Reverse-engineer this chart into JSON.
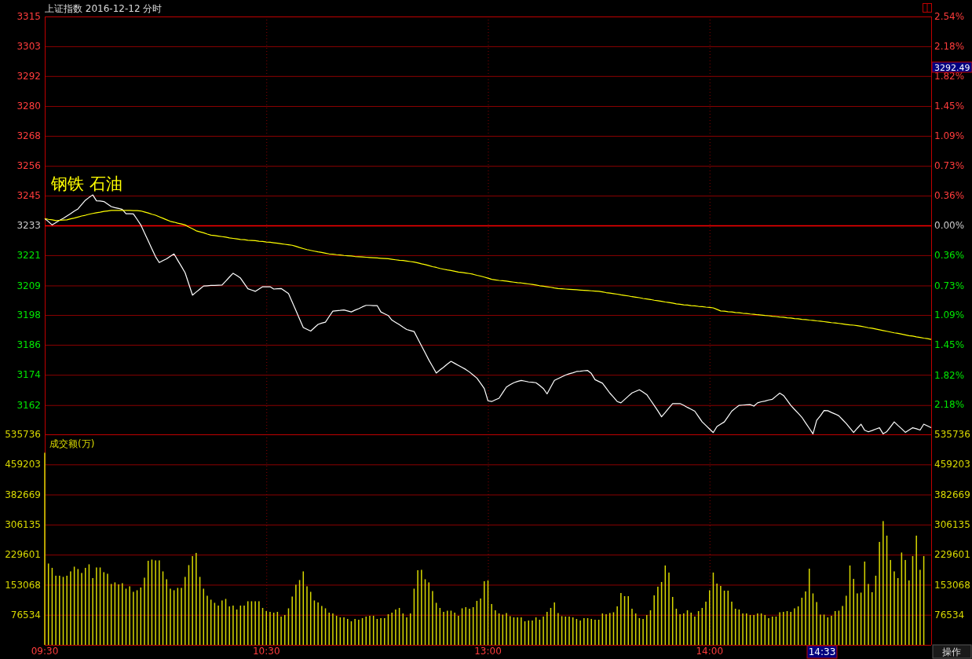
{
  "chart_data": [
    {
      "type": "line",
      "title": "上证指数  2016-12-12 分时",
      "categories": [
        null,
        null,
        null,
        null,
        null,
        null,
        null,
        null,
        null,
        null,
        null,
        null,
        null,
        null,
        null,
        null,
        null,
        null,
        null,
        null,
        null,
        null,
        null,
        null,
        null,
        null,
        null,
        null,
        null,
        null,
        null,
        null,
        null,
        null,
        null,
        null,
        null,
        null,
        null,
        null,
        null,
        null,
        null,
        null,
        null,
        null,
        null,
        null,
        null,
        null,
        null,
        null,
        null,
        null,
        null,
        null,
        null,
        null,
        null,
        null,
        null,
        null,
        null,
        null,
        null,
        null,
        null,
        null,
        null,
        null,
        null,
        null,
        null,
        null,
        null,
        null,
        null,
        null,
        null,
        null,
        null,
        null,
        null,
        null,
        null,
        null,
        null,
        null,
        null,
        null,
        null,
        null,
        null,
        null,
        null,
        null,
        null,
        null,
        null,
        null,
        null,
        null,
        null,
        null,
        null,
        null,
        null,
        null,
        null,
        null,
        null,
        null,
        null,
        null,
        null,
        null,
        null,
        null,
        null,
        null,
        null,
        null,
        null,
        null,
        null,
        null,
        null,
        null,
        null,
        null,
        null,
        null,
        null,
        null,
        null,
        null,
        null,
        null,
        null,
        null,
        null,
        null,
        null,
        null,
        null,
        null,
        null,
        null,
        null,
        null,
        null,
        null,
        null,
        null,
        null,
        null,
        null,
        null,
        null,
        null,
        null,
        null,
        null,
        null,
        null,
        null,
        null,
        null,
        null,
        null,
        null,
        null,
        null,
        null,
        null,
        null,
        null,
        null,
        null,
        null,
        null,
        null,
        null,
        null,
        null,
        null,
        null,
        null,
        null,
        null,
        null,
        null,
        null,
        null,
        null,
        null,
        null,
        null,
        null,
        null,
        null,
        null,
        null,
        null,
        null,
        null,
        null,
        null,
        null,
        null,
        null,
        null,
        null,
        null,
        null,
        null,
        null,
        null,
        null,
        null,
        null,
        null,
        null,
        null,
        null,
        null,
        null,
        null,
        null,
        null,
        null,
        null,
        null,
        null,
        null,
        null,
        null,
        null,
        null,
        null,
        null
      ],
      "ylim": [
        3150.9,
        3315.1
      ],
      "yticks": [
        {
          "value": 3315.1,
          "label": "3315"
        },
        {
          "value": 3303.4,
          "label": "3303"
        },
        {
          "value": 3291.7,
          "label": "3292"
        },
        {
          "value": 3279.9,
          "label": "3280"
        },
        {
          "value": 3268.2,
          "label": "3268"
        },
        {
          "value": 3256.4,
          "label": "3256"
        },
        {
          "value": 3244.7,
          "label": "3245"
        },
        {
          "value": 3233.0,
          "label": "3233"
        },
        {
          "value": 3221.3,
          "label": "3221"
        },
        {
          "value": 3209.4,
          "label": "3209"
        },
        {
          "value": 3197.8,
          "label": "3198"
        },
        {
          "value": 3186.1,
          "label": "3186"
        },
        {
          "value": 3174.3,
          "label": "3174"
        },
        {
          "value": 3162.4,
          "label": "3162"
        }
      ],
      "y2lim": [
        -2.54,
        2.54
      ],
      "y2ticks": [
        {
          "value": 2.54,
          "label": "2.54%"
        },
        {
          "value": 2.18,
          "label": "2.18%"
        },
        {
          "value": 1.82,
          "label": "1.82%"
        },
        {
          "value": 1.45,
          "label": "1.45%"
        },
        {
          "value": 1.09,
          "label": "1.09%"
        },
        {
          "value": 0.73,
          "label": "0.73%"
        },
        {
          "value": 0.36,
          "label": "0.36%"
        },
        {
          "value": 0,
          "label": "0.00%"
        },
        {
          "value": -0.36,
          "label": "0.36%"
        },
        {
          "value": -0.73,
          "label": "0.73%"
        },
        {
          "value": -1.09,
          "label": "1.09%"
        },
        {
          "value": -1.45,
          "label": "1.45%"
        },
        {
          "value": -1.82,
          "label": "1.82%"
        },
        {
          "value": -2.18,
          "label": "2.18%"
        }
      ],
      "grid": true,
      "tick_labels": "y",
      "ref_lines": [
        {
          "axis": "y",
          "value": 3233.0,
          "color": "#ff0000"
        }
      ],
      "annotations": [
        "钢铁 石油",
        "3292.49"
      ],
      "series": [
        {
          "color": "#ffffff",
          "values": [
            3235.7,
            3234.5,
            3233.2,
            3234.1,
            3235.0,
            3235.8,
            3236.7,
            3237.6,
            3238.6,
            3239.5,
            3241.2,
            3242.9,
            3244.0,
            3245.0,
            3242.7,
            3242.6,
            3242.4,
            3241.4,
            3240.4,
            3240.0,
            3239.7,
            3239.3,
            3237.6,
            3237.6,
            3237.5,
            3235.4,
            3233.2,
            3230.1,
            3227.0,
            3223.8,
            3220.7,
            3218.4,
            3219.2,
            3219.9,
            3220.9,
            3221.8,
            3219.3,
            3216.9,
            3214.4,
            3210.0,
            3205.6,
            3206.8,
            3208.0,
            3209.2,
            3209.3,
            3209.4,
            3209.4,
            3209.5,
            3209.6,
            3211.1,
            3212.7,
            3214.2,
            3213.3,
            3212.3,
            3210.2,
            3208.1,
            3207.6,
            3207.1,
            3208.0,
            3208.9,
            3208.9,
            3208.9,
            3208.0,
            3208.1,
            3208.2,
            3207.2,
            3206.2,
            3202.9,
            3199.6,
            3196.2,
            3192.9,
            3192.2,
            3191.5,
            3192.8,
            3194.1,
            3194.6,
            3195.0,
            3197.2,
            3199.3,
            3199.5,
            3199.6,
            3199.8,
            3199.4,
            3199.0,
            3199.7,
            3200.3,
            3201.0,
            3201.6,
            3201.6,
            3201.5,
            3201.5,
            3199.0,
            3198.3,
            3197.6,
            3195.8,
            3194.9,
            3194.0,
            3193.0,
            3192.1,
            3191.7,
            3191.3,
            3188.5,
            3185.7,
            3182.9,
            3180.1,
            3177.6,
            3175.0,
            3176.2,
            3177.3,
            3178.5,
            3179.6,
            3178.8,
            3178.0,
            3177.2,
            3176.4,
            3175.4,
            3174.2,
            3173.0,
            3171.0,
            3168.9,
            3164.1,
            3163.8,
            3164.5,
            3165.1,
            3167.3,
            3169.5,
            3170.4,
            3171.2,
            3171.7,
            3172.1,
            3171.8,
            3171.5,
            3171.4,
            3171.2,
            3170.1,
            3168.9,
            3166.8,
            3169.5,
            3172.1,
            3172.8,
            3173.5,
            3174.2,
            3174.7,
            3175.1,
            3175.6,
            3175.7,
            3175.9,
            3176.0,
            3174.8,
            3172.4,
            3171.7,
            3171.0,
            3169.1,
            3167.1,
            3165.5,
            3163.8,
            3163.3,
            3164.6,
            3165.9,
            3167.2,
            3167.8,
            3168.4,
            3167.5,
            3166.5,
            3164.4,
            3162.3,
            3160.1,
            3157.8,
            3159.5,
            3161.3,
            3163.0,
            3163.0,
            3163.0,
            3162.3,
            3161.5,
            3160.8,
            3160.0,
            3157.9,
            3155.8,
            3154.4,
            3153.0,
            3151.6,
            3154.0,
            3154.9,
            3155.8,
            3157.9,
            3160.0,
            3161.2,
            3162.3,
            3162.4,
            3162.5,
            3162.6,
            3162.0,
            3163.3,
            3163.7,
            3164.0,
            3164.4,
            3164.7,
            3165.9,
            3167.1,
            3166.2,
            3164.3,
            3162.3,
            3160.7,
            3159.2,
            3157.6,
            3155.4,
            3153.3,
            3151.1,
            3156.4,
            3158.2,
            3160.3,
            3160.2,
            3159.5,
            3158.9,
            3158.2,
            3156.7,
            3155.2,
            3153.4,
            3151.6,
            3153.3,
            3154.9,
            3152.5,
            3151.9,
            3152.4,
            3153.0,
            3153.5,
            3151.1,
            3152.0,
            3153.9,
            3155.8,
            3154.4,
            3153.1,
            3151.7,
            3152.6,
            3153.5,
            3153.1,
            3152.6,
            3154.9,
            3154.2,
            3153.5
          ]
        },
        {
          "color": "#ffff00",
          "values": [
            3235.7,
            3235.4,
            3235.2,
            3234.9,
            3235.0,
            3235.1,
            3235.2,
            3235.6,
            3235.9,
            3236.3,
            3236.7,
            3237.0,
            3237.4,
            3237.7,
            3238.0,
            3238.2,
            3238.5,
            3238.7,
            3238.9,
            3238.9,
            3238.9,
            3238.9,
            3238.9,
            3238.9,
            3238.8,
            3238.8,
            3238.7,
            3238.3,
            3237.9,
            3237.4,
            3237.0,
            3236.4,
            3235.8,
            3235.2,
            3234.6,
            3234.3,
            3233.9,
            3233.6,
            3233.2,
            3232.4,
            3231.7,
            3230.9,
            3230.5,
            3230.1,
            3229.6,
            3229.2,
            3229.0,
            3228.8,
            3228.6,
            3228.4,
            3228.1,
            3227.9,
            3227.7,
            3227.5,
            3227.4,
            3227.2,
            3227.1,
            3227.0,
            3226.8,
            3226.7,
            3226.5,
            3226.4,
            3226.2,
            3226.0,
            3225.8,
            3225.6,
            3225.4,
            3225.2,
            3224.8,
            3224.3,
            3223.9,
            3223.5,
            3223.2,
            3222.9,
            3222.6,
            3222.4,
            3222.1,
            3221.8,
            3221.7,
            3221.5,
            3221.4,
            3221.2,
            3221.1,
            3221.0,
            3220.8,
            3220.7,
            3220.6,
            3220.5,
            3220.4,
            3220.3,
            3220.2,
            3220.1,
            3220.0,
            3219.9,
            3219.7,
            3219.5,
            3219.3,
            3219.2,
            3219.0,
            3218.8,
            3218.6,
            3218.3,
            3217.9,
            3217.6,
            3217.2,
            3216.8,
            3216.5,
            3216.1,
            3215.8,
            3215.5,
            3215.3,
            3215.0,
            3214.7,
            3214.5,
            3214.3,
            3214.1,
            3213.8,
            3213.4,
            3213.1,
            3212.7,
            3212.3,
            3211.8,
            3211.6,
            3211.4,
            3211.3,
            3211.1,
            3210.9,
            3210.7,
            3210.5,
            3210.4,
            3210.2,
            3210.0,
            3209.8,
            3209.6,
            3209.3,
            3209.1,
            3208.9,
            3208.7,
            3208.4,
            3208.2,
            3208.1,
            3208.0,
            3207.9,
            3207.8,
            3207.7,
            3207.6,
            3207.5,
            3207.4,
            3207.3,
            3207.2,
            3207.1,
            3206.9,
            3206.6,
            3206.4,
            3206.2,
            3206.0,
            3205.7,
            3205.5,
            3205.3,
            3205.0,
            3204.8,
            3204.6,
            3204.3,
            3204.1,
            3203.9,
            3203.6,
            3203.4,
            3203.2,
            3202.9,
            3202.7,
            3202.5,
            3202.2,
            3202.0,
            3201.8,
            3201.7,
            3201.5,
            3201.4,
            3201.2,
            3201.1,
            3200.9,
            3200.8,
            3200.6,
            3200.0,
            3199.4,
            3199.3,
            3199.1,
            3199.0,
            3198.8,
            3198.7,
            3198.5,
            3198.4,
            3198.2,
            3198.1,
            3197.9,
            3197.8,
            3197.6,
            3197.5,
            3197.3,
            3197.2,
            3197.0,
            3196.9,
            3196.7,
            3196.6,
            3196.4,
            3196.3,
            3196.1,
            3196.0,
            3195.8,
            3195.7,
            3195.5,
            3195.4,
            3195.2,
            3195.0,
            3194.8,
            3194.7,
            3194.5,
            3194.3,
            3194.1,
            3193.9,
            3193.8,
            3193.6,
            3193.4,
            3193.1,
            3192.8,
            3192.6,
            3192.3,
            3192.0,
            3191.7,
            3191.4,
            3191.1,
            3190.8,
            3190.6,
            3190.3,
            3190.0,
            3189.7,
            3189.5,
            3189.2,
            3189.0,
            3188.7,
            3188.5,
            3188.2
          ]
        }
      ]
    },
    {
      "type": "bar",
      "title": "成交额(万)",
      "color": "#d8d800",
      "categories": [
        "09:30",
        null,
        null,
        null,
        null,
        null,
        null,
        null,
        null,
        null,
        null,
        null,
        null,
        null,
        null,
        null,
        null,
        null,
        null,
        null,
        null,
        null,
        null,
        null,
        null,
        null,
        null,
        null,
        null,
        null,
        null,
        null,
        null,
        null,
        null,
        null,
        null,
        null,
        null,
        null,
        null,
        null,
        null,
        null,
        null,
        null,
        null,
        null,
        null,
        null,
        null,
        null,
        null,
        null,
        null,
        null,
        null,
        null,
        null,
        null,
        "10:30",
        null,
        null,
        null,
        null,
        null,
        null,
        null,
        null,
        null,
        null,
        null,
        null,
        null,
        null,
        null,
        null,
        null,
        null,
        null,
        null,
        null,
        null,
        null,
        null,
        null,
        null,
        null,
        null,
        null,
        null,
        null,
        null,
        null,
        null,
        null,
        null,
        null,
        null,
        null,
        null,
        null,
        null,
        null,
        null,
        null,
        null,
        null,
        null,
        null,
        null,
        null,
        null,
        null,
        null,
        null,
        null,
        null,
        null,
        null,
        "13:00",
        null,
        null,
        null,
        null,
        null,
        null,
        null,
        null,
        null,
        null,
        null,
        null,
        null,
        null,
        null,
        null,
        null,
        null,
        null,
        null,
        null,
        null,
        null,
        null,
        null,
        null,
        null,
        null,
        null,
        null,
        null,
        null,
        null,
        null,
        null,
        null,
        null,
        null,
        null,
        null,
        null,
        null,
        null,
        null,
        null,
        null,
        null,
        null,
        null,
        null,
        null,
        null,
        null,
        null,
        null,
        null,
        null,
        null,
        null,
        "14:00",
        null,
        null,
        null,
        null,
        null,
        null,
        null,
        null,
        null,
        null,
        null,
        null,
        null,
        null,
        null,
        null,
        null,
        null,
        null,
        null,
        null,
        null,
        null,
        null,
        null,
        null,
        null,
        null,
        null,
        null,
        null,
        null,
        null,
        null,
        null,
        null,
        null,
        null,
        null,
        null,
        null,
        null,
        null,
        null,
        null,
        null,
        null,
        null,
        null,
        null,
        null,
        null,
        null,
        null,
        null,
        null,
        null,
        null,
        null,
        null
      ],
      "ylim": [
        0,
        535736
      ],
      "yticks": [
        76534,
        153068,
        229601,
        306135,
        382669,
        459203,
        535736
      ],
      "y2lim": [
        0,
        535736
      ],
      "y2ticks": [
        76534,
        153068,
        229601,
        306135,
        382669,
        459203,
        535736
      ],
      "grid": true,
      "annotations": [
        "14:33",
        "操作"
      ],
      "values": [
        489000,
        207000,
        196000,
        176000,
        176000,
        173000,
        176000,
        187000,
        199000,
        193000,
        183000,
        196000,
        205000,
        170000,
        197000,
        197000,
        185000,
        181000,
        155000,
        159000,
        154000,
        157000,
        143000,
        149000,
        135000,
        139000,
        146000,
        171000,
        214000,
        217000,
        215000,
        215000,
        187000,
        167000,
        143000,
        139000,
        145000,
        145000,
        173000,
        203000,
        226000,
        234000,
        173000,
        143000,
        125000,
        115000,
        107000,
        100000,
        113000,
        117000,
        98000,
        100000,
        90000,
        100000,
        100000,
        111000,
        111000,
        111000,
        111000,
        94000,
        86000,
        84000,
        82000,
        84000,
        72000,
        76000,
        93000,
        123000,
        153000,
        165000,
        187000,
        149000,
        135000,
        113000,
        108000,
        99000,
        93000,
        82000,
        80000,
        74000,
        70000,
        70000,
        66000,
        60000,
        66000,
        64000,
        68000,
        72000,
        74000,
        74000,
        66000,
        68000,
        68000,
        78000,
        82000,
        90000,
        94000,
        80000,
        70000,
        80000,
        143000,
        190000,
        191000,
        167000,
        159000,
        137000,
        107000,
        94000,
        84000,
        87000,
        87000,
        82000,
        74000,
        93000,
        96000,
        92000,
        96000,
        112000,
        118000,
        162000,
        164000,
        104000,
        88000,
        80000,
        77000,
        81000,
        73000,
        70000,
        70000,
        70000,
        60000,
        62000,
        62000,
        70000,
        64000,
        72000,
        84000,
        94000,
        108000,
        81000,
        73000,
        72000,
        72000,
        70000,
        66000,
        62000,
        68000,
        68000,
        66000,
        64000,
        64000,
        80000,
        78000,
        81000,
        83000,
        98000,
        132000,
        124000,
        124000,
        92000,
        80000,
        68000,
        66000,
        76000,
        88000,
        126000,
        148000,
        160000,
        202000,
        184000,
        122000,
        92000,
        78000,
        80000,
        88000,
        82000,
        72000,
        86000,
        94000,
        110000,
        139000,
        184000,
        156000,
        150000,
        138000,
        138000,
        110000,
        92000,
        90000,
        80000,
        80000,
        76000,
        76000,
        80000,
        80000,
        76000,
        68000,
        72000,
        72000,
        83000,
        84000,
        86000,
        84000,
        93000,
        98000,
        120000,
        136000,
        194000,
        131000,
        109000,
        77000,
        77000,
        70000,
        74000,
        86000,
        87000,
        99000,
        125000,
        202000,
        168000,
        131000,
        133000,
        212000,
        155000,
        134000,
        176000,
        262000,
        315000,
        278000,
        216000,
        187000,
        170000,
        235000,
        216000,
        164000,
        226000,
        278000,
        191000,
        226000,
        null,
        null
      ]
    }
  ]
}
